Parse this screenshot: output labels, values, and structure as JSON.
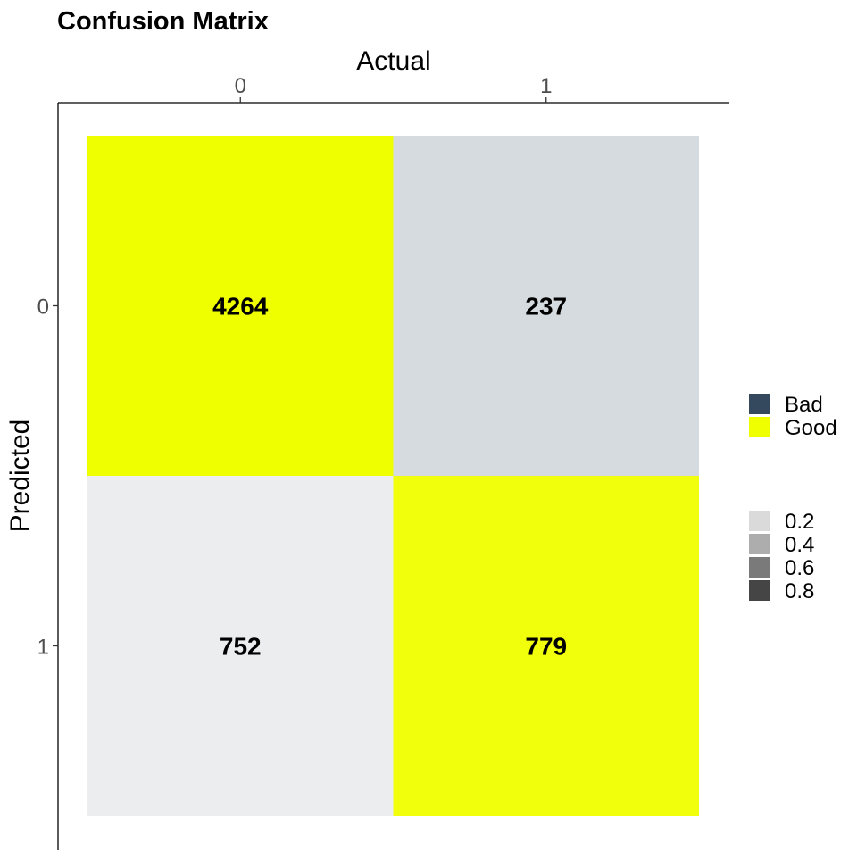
{
  "chart_data": {
    "type": "heatmap",
    "title": "Confusion Matrix",
    "xlabel": "Actual",
    "ylabel": "Predicted",
    "x_categories": [
      "0",
      "1"
    ],
    "y_categories": [
      "0",
      "1"
    ],
    "x_axis_position": "top",
    "cells": [
      {
        "predicted": "0",
        "actual": "0",
        "value": 4264,
        "outcome": "Good",
        "alpha": 1.0
      },
      {
        "predicted": "0",
        "actual": "1",
        "value": 237,
        "outcome": "Bad",
        "alpha": 0.2
      },
      {
        "predicted": "1",
        "actual": "0",
        "value": 752,
        "outcome": "Bad",
        "alpha": 0.1
      },
      {
        "predicted": "1",
        "actual": "1",
        "value": 779,
        "outcome": "Good",
        "alpha": 0.95
      }
    ],
    "legend_fill": {
      "placement": "right",
      "entries": [
        {
          "label": "Bad",
          "color": "#34495e"
        },
        {
          "label": "Good",
          "color": "#f0ff00"
        }
      ]
    },
    "legend_alpha": {
      "placement": "right",
      "entries": [
        {
          "label": "0.2",
          "color": "#dadada"
        },
        {
          "label": "0.4",
          "color": "#adadad"
        },
        {
          "label": "0.6",
          "color": "#7a7a7a"
        },
        {
          "label": "0.8",
          "color": "#454545"
        }
      ]
    },
    "colors": {
      "good": "#f0ff00",
      "bad": "#34495e",
      "axis_line": "#000000",
      "tick_label": "#4d4d4d"
    },
    "grid": false
  }
}
